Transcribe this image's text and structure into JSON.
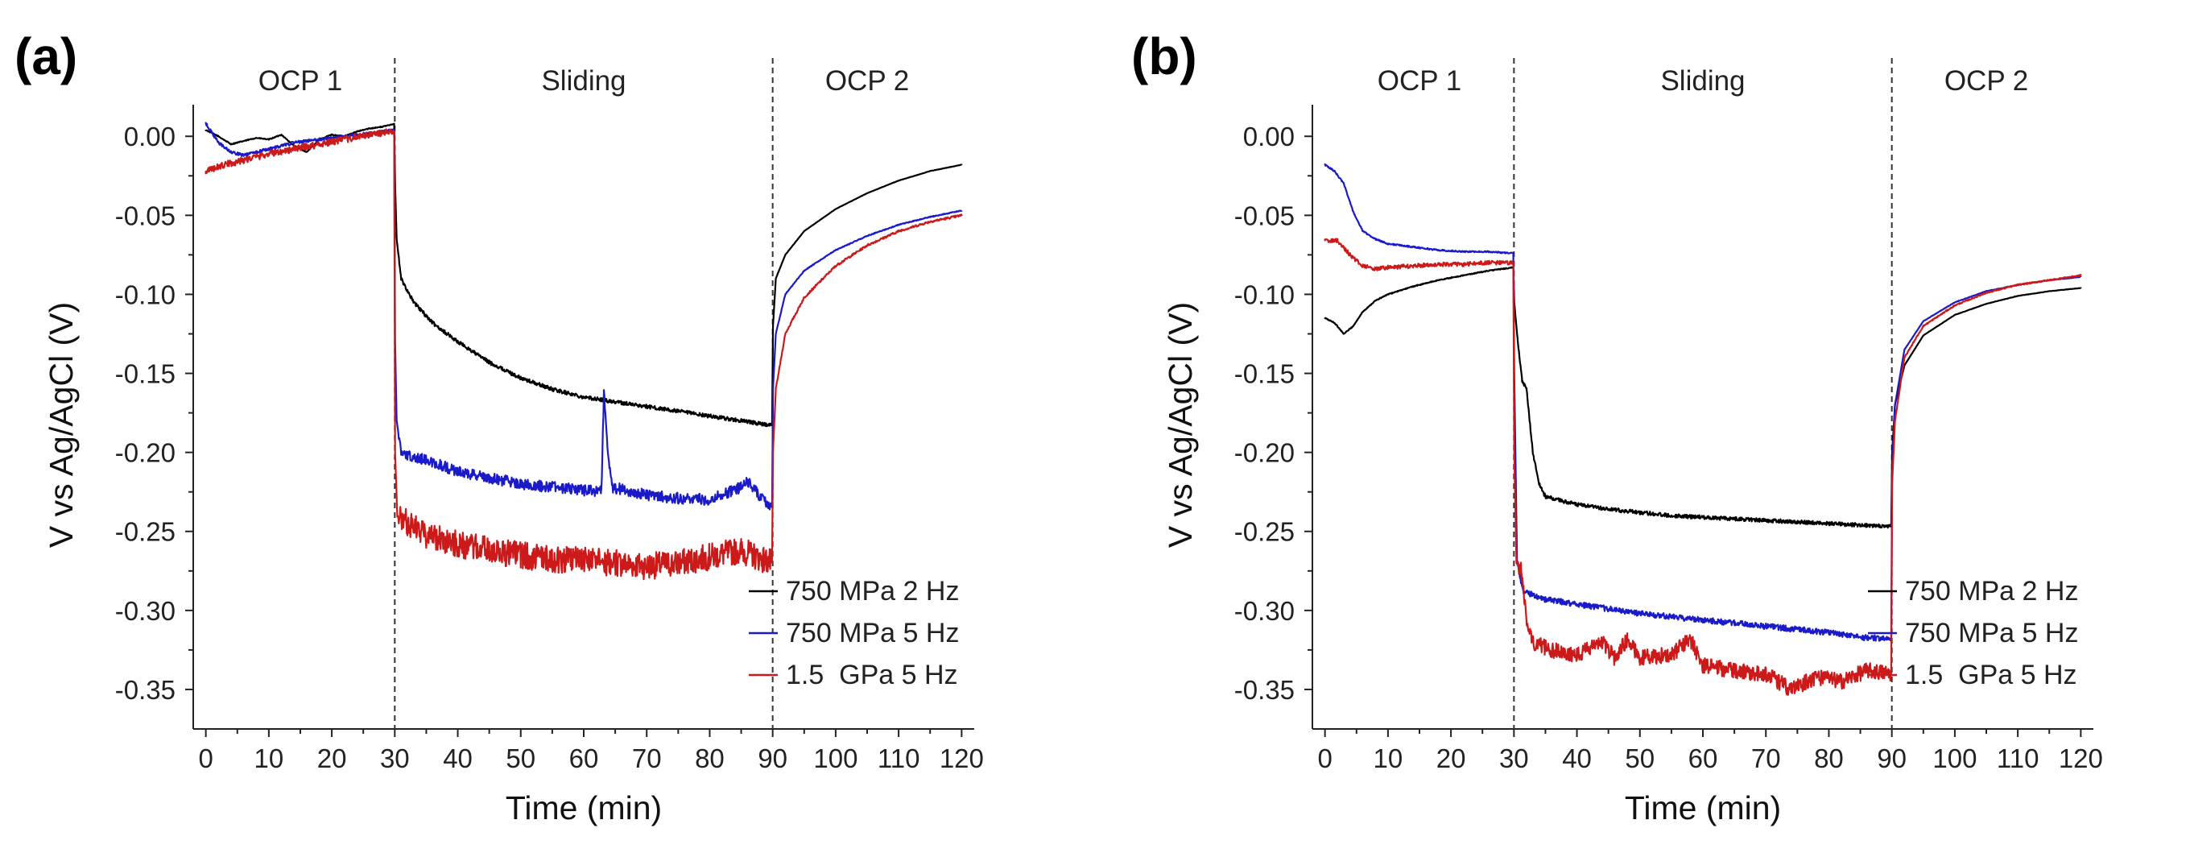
{
  "chart_data": [
    {
      "type": "line",
      "panel_label": "(a)",
      "xlabel": "Time (min)",
      "ylabel": "V vs Ag/AgCl (V)",
      "xlim": [
        -2,
        122
      ],
      "ylim": [
        -0.375,
        0.02
      ],
      "xticks": [
        0,
        10,
        20,
        30,
        40,
        50,
        60,
        70,
        80,
        90,
        100,
        110,
        120
      ],
      "yticks": [
        0.0,
        -0.05,
        -0.1,
        -0.15,
        -0.2,
        -0.25,
        -0.3,
        -0.35
      ],
      "ytick_labels": [
        "0.00",
        "-0.05",
        "-0.10",
        "-0.15",
        "-0.20",
        "-0.25",
        "-0.30",
        "-0.35"
      ],
      "dividers": [
        30,
        90
      ],
      "regions": [
        {
          "label": "OCP 1",
          "center": 15
        },
        {
          "label": "Sliding",
          "center": 60
        },
        {
          "label": "OCP 2",
          "center": 105
        }
      ],
      "legend_position": "bottom-right",
      "series": [
        {
          "name": "750 MPa 2 Hz",
          "color": "#000000",
          "noise": 0.0012,
          "points": [
            [
              0,
              0.004
            ],
            [
              2,
              0.0
            ],
            [
              4,
              -0.005
            ],
            [
              6,
              -0.003
            ],
            [
              8,
              -0.001
            ],
            [
              10,
              -0.002
            ],
            [
              12,
              0.001
            ],
            [
              14,
              -0.006
            ],
            [
              16,
              -0.01
            ],
            [
              18,
              -0.002
            ],
            [
              20,
              0.001
            ],
            [
              22,
              0.0
            ],
            [
              24,
              0.003
            ],
            [
              26,
              0.005
            ],
            [
              28,
              0.006
            ],
            [
              29.9,
              0.008
            ],
            [
              30.05,
              -0.03
            ],
            [
              30.3,
              -0.065
            ],
            [
              31,
              -0.09
            ],
            [
              33,
              -0.105
            ],
            [
              36,
              -0.118
            ],
            [
              40,
              -0.13
            ],
            [
              45,
              -0.143
            ],
            [
              50,
              -0.153
            ],
            [
              55,
              -0.16
            ],
            [
              60,
              -0.165
            ],
            [
              65,
              -0.168
            ],
            [
              70,
              -0.171
            ],
            [
              75,
              -0.174
            ],
            [
              80,
              -0.177
            ],
            [
              85,
              -0.18
            ],
            [
              89.9,
              -0.183
            ],
            [
              90.05,
              -0.12
            ],
            [
              90.5,
              -0.09
            ],
            [
              92,
              -0.075
            ],
            [
              95,
              -0.06
            ],
            [
              100,
              -0.046
            ],
            [
              105,
              -0.036
            ],
            [
              110,
              -0.028
            ],
            [
              115,
              -0.022
            ],
            [
              120,
              -0.018
            ]
          ]
        },
        {
          "name": "750 MPa 5 Hz",
          "color": "#1a1ac8",
          "noise": 0.0035,
          "points": [
            [
              0,
              0.008
            ],
            [
              2,
              -0.004
            ],
            [
              4,
              -0.01
            ],
            [
              6,
              -0.012
            ],
            [
              8,
              -0.01
            ],
            [
              10,
              -0.008
            ],
            [
              14,
              -0.004
            ],
            [
              18,
              -0.002
            ],
            [
              22,
              0.0
            ],
            [
              26,
              0.002
            ],
            [
              29.9,
              0.004
            ],
            [
              30.05,
              -0.13
            ],
            [
              30.3,
              -0.18
            ],
            [
              31,
              -0.2
            ],
            [
              35,
              -0.205
            ],
            [
              40,
              -0.212
            ],
            [
              45,
              -0.216
            ],
            [
              50,
              -0.22
            ],
            [
              55,
              -0.222
            ],
            [
              60,
              -0.224
            ],
            [
              62.8,
              -0.225
            ],
            [
              63.2,
              -0.162
            ],
            [
              63.8,
              -0.2
            ],
            [
              64.5,
              -0.222
            ],
            [
              70,
              -0.227
            ],
            [
              75,
              -0.229
            ],
            [
              80,
              -0.23
            ],
            [
              85,
              -0.222
            ],
            [
              86,
              -0.218
            ],
            [
              88,
              -0.228
            ],
            [
              89.9,
              -0.235
            ],
            [
              90.05,
              -0.16
            ],
            [
              90.5,
              -0.125
            ],
            [
              92,
              -0.1
            ],
            [
              95,
              -0.085
            ],
            [
              100,
              -0.072
            ],
            [
              105,
              -0.063
            ],
            [
              110,
              -0.056
            ],
            [
              115,
              -0.051
            ],
            [
              120,
              -0.047
            ]
          ]
        },
        {
          "name": "1.5  GPa 5 Hz",
          "color": "#cc1a1a",
          "noise": 0.0085,
          "points": [
            [
              0,
              -0.022
            ],
            [
              3,
              -0.018
            ],
            [
              6,
              -0.015
            ],
            [
              10,
              -0.011
            ],
            [
              14,
              -0.008
            ],
            [
              18,
              -0.005
            ],
            [
              22,
              -0.002
            ],
            [
              26,
              0.001
            ],
            [
              29.9,
              0.003
            ],
            [
              30.05,
              -0.2
            ],
            [
              30.4,
              -0.24
            ],
            [
              32,
              -0.245
            ],
            [
              35,
              -0.252
            ],
            [
              40,
              -0.258
            ],
            [
              45,
              -0.262
            ],
            [
              50,
              -0.265
            ],
            [
              55,
              -0.268
            ],
            [
              60,
              -0.268
            ],
            [
              65,
              -0.27
            ],
            [
              70,
              -0.272
            ],
            [
              75,
              -0.27
            ],
            [
              80,
              -0.266
            ],
            [
              85,
              -0.262
            ],
            [
              89.9,
              -0.27
            ],
            [
              90.05,
              -0.2
            ],
            [
              90.5,
              -0.16
            ],
            [
              92,
              -0.125
            ],
            [
              95,
              -0.102
            ],
            [
              100,
              -0.082
            ],
            [
              105,
              -0.069
            ],
            [
              110,
              -0.06
            ],
            [
              115,
              -0.054
            ],
            [
              120,
              -0.05
            ]
          ]
        }
      ]
    },
    {
      "type": "line",
      "panel_label": "(b)",
      "xlabel": "Time (min)",
      "ylabel": "V vs Ag/AgCl (V)",
      "xlim": [
        -2,
        122
      ],
      "ylim": [
        -0.375,
        0.02
      ],
      "xticks": [
        0,
        10,
        20,
        30,
        40,
        50,
        60,
        70,
        80,
        90,
        100,
        110,
        120
      ],
      "yticks": [
        0.0,
        -0.05,
        -0.1,
        -0.15,
        -0.2,
        -0.25,
        -0.3,
        -0.35
      ],
      "ytick_labels": [
        "0.00",
        "-0.05",
        "-0.10",
        "-0.15",
        "-0.20",
        "-0.25",
        "-0.30",
        "-0.35"
      ],
      "dividers": [
        30,
        90
      ],
      "regions": [
        {
          "label": "OCP 1",
          "center": 15
        },
        {
          "label": "Sliding",
          "center": 60
        },
        {
          "label": "OCP 2",
          "center": 105
        }
      ],
      "legend_position": "bottom-right",
      "series": [
        {
          "name": "750 MPa 2 Hz",
          "color": "#000000",
          "noise": 0.0012,
          "points": [
            [
              0,
              -0.115
            ],
            [
              1.5,
              -0.118
            ],
            [
              3,
              -0.125
            ],
            [
              4.5,
              -0.12
            ],
            [
              6,
              -0.111
            ],
            [
              8,
              -0.104
            ],
            [
              10,
              -0.1
            ],
            [
              14,
              -0.095
            ],
            [
              18,
              -0.091
            ],
            [
              22,
              -0.088
            ],
            [
              26,
              -0.085
            ],
            [
              29.9,
              -0.083
            ],
            [
              30.05,
              -0.105
            ],
            [
              30.5,
              -0.125
            ],
            [
              31.3,
              -0.155
            ],
            [
              32,
              -0.16
            ],
            [
              33,
              -0.2
            ],
            [
              34,
              -0.22
            ],
            [
              35,
              -0.228
            ],
            [
              40,
              -0.233
            ],
            [
              45,
              -0.236
            ],
            [
              50,
              -0.238
            ],
            [
              55,
              -0.24
            ],
            [
              60,
              -0.241
            ],
            [
              65,
              -0.242
            ],
            [
              70,
              -0.243
            ],
            [
              75,
              -0.244
            ],
            [
              80,
              -0.245
            ],
            [
              85,
              -0.246
            ],
            [
              89.9,
              -0.247
            ],
            [
              90.05,
              -0.2
            ],
            [
              90.5,
              -0.17
            ],
            [
              92,
              -0.145
            ],
            [
              95,
              -0.126
            ],
            [
              100,
              -0.113
            ],
            [
              105,
              -0.106
            ],
            [
              110,
              -0.101
            ],
            [
              115,
              -0.098
            ],
            [
              120,
              -0.096
            ]
          ]
        },
        {
          "name": "750 MPa 5 Hz",
          "color": "#1a1ac8",
          "noise": 0.0018,
          "points": [
            [
              0,
              -0.018
            ],
            [
              1.5,
              -0.022
            ],
            [
              3,
              -0.03
            ],
            [
              4.5,
              -0.048
            ],
            [
              6,
              -0.06
            ],
            [
              8,
              -0.065
            ],
            [
              10,
              -0.068
            ],
            [
              14,
              -0.07
            ],
            [
              18,
              -0.072
            ],
            [
              22,
              -0.073
            ],
            [
              26,
              -0.073
            ],
            [
              29.9,
              -0.074
            ],
            [
              30.05,
              -0.15
            ],
            [
              30.5,
              -0.27
            ],
            [
              31.5,
              -0.288
            ],
            [
              35,
              -0.293
            ],
            [
              40,
              -0.296
            ],
            [
              45,
              -0.299
            ],
            [
              50,
              -0.302
            ],
            [
              55,
              -0.304
            ],
            [
              60,
              -0.306
            ],
            [
              65,
              -0.308
            ],
            [
              70,
              -0.31
            ],
            [
              75,
              -0.312
            ],
            [
              80,
              -0.314
            ],
            [
              85,
              -0.317
            ],
            [
              89.9,
              -0.318
            ],
            [
              90.05,
              -0.21
            ],
            [
              90.5,
              -0.17
            ],
            [
              92,
              -0.135
            ],
            [
              95,
              -0.117
            ],
            [
              100,
              -0.105
            ],
            [
              105,
              -0.098
            ],
            [
              110,
              -0.094
            ],
            [
              115,
              -0.091
            ],
            [
              120,
              -0.089
            ]
          ]
        },
        {
          "name": "1.5  GPa 5 Hz",
          "color": "#cc1a1a",
          "noise": 0.005,
          "points": [
            [
              0,
              -0.066
            ],
            [
              2,
              -0.066
            ],
            [
              4,
              -0.075
            ],
            [
              6,
              -0.082
            ],
            [
              8,
              -0.084
            ],
            [
              10,
              -0.083
            ],
            [
              14,
              -0.082
            ],
            [
              18,
              -0.081
            ],
            [
              22,
              -0.081
            ],
            [
              26,
              -0.08
            ],
            [
              29.9,
              -0.08
            ],
            [
              30.05,
              -0.2
            ],
            [
              30.4,
              -0.27
            ],
            [
              31.2,
              -0.275
            ],
            [
              32,
              -0.305
            ],
            [
              33,
              -0.32
            ],
            [
              36,
              -0.325
            ],
            [
              40,
              -0.328
            ],
            [
              44,
              -0.32
            ],
            [
              46,
              -0.33
            ],
            [
              48,
              -0.318
            ],
            [
              50,
              -0.33
            ],
            [
              55,
              -0.328
            ],
            [
              58,
              -0.318
            ],
            [
              60,
              -0.335
            ],
            [
              65,
              -0.338
            ],
            [
              70,
              -0.34
            ],
            [
              74,
              -0.35
            ],
            [
              78,
              -0.342
            ],
            [
              82,
              -0.345
            ],
            [
              86,
              -0.338
            ],
            [
              89.9,
              -0.34
            ],
            [
              90.05,
              -0.22
            ],
            [
              90.5,
              -0.18
            ],
            [
              92,
              -0.14
            ],
            [
              95,
              -0.12
            ],
            [
              100,
              -0.107
            ],
            [
              105,
              -0.099
            ],
            [
              110,
              -0.094
            ],
            [
              115,
              -0.091
            ],
            [
              120,
              -0.088
            ]
          ]
        }
      ]
    }
  ]
}
